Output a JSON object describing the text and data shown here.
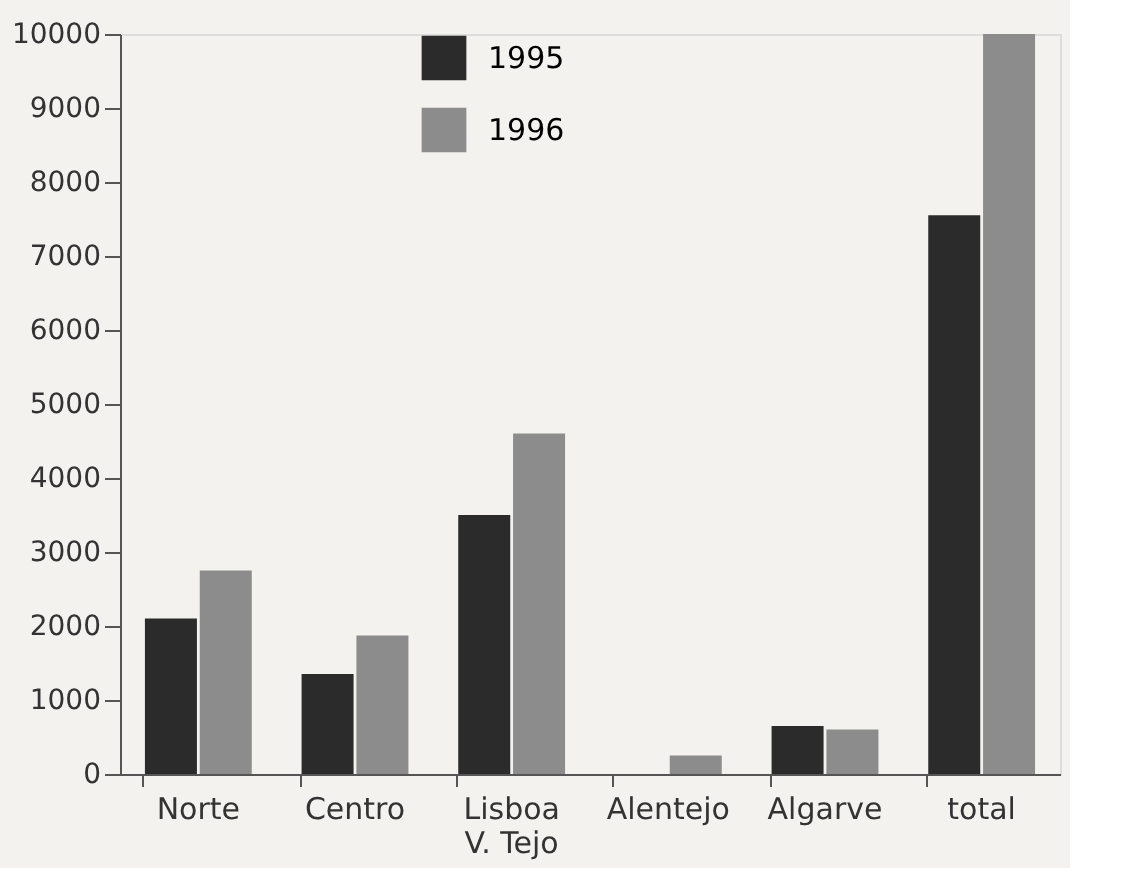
{
  "chart_data": {
    "type": "bar",
    "categories": [
      "Norte",
      "Centro",
      "Lisboa\nV. Tejo",
      "Alentejo",
      "Algarve",
      "total"
    ],
    "series": [
      {
        "name": "1995",
        "color": "#2b2b2b",
        "values": [
          2100,
          1350,
          3500,
          0,
          650,
          7550
        ]
      },
      {
        "name": "1996",
        "color": "#8c8c8c",
        "values": [
          2750,
          1870,
          4600,
          250,
          600,
          10000
        ]
      }
    ],
    "ylim": [
      0,
      10000
    ],
    "yticks": [
      0,
      1000,
      2000,
      3000,
      4000,
      5000,
      6000,
      7000,
      8000,
      9000,
      10000
    ],
    "grid": false,
    "legend": "top"
  }
}
